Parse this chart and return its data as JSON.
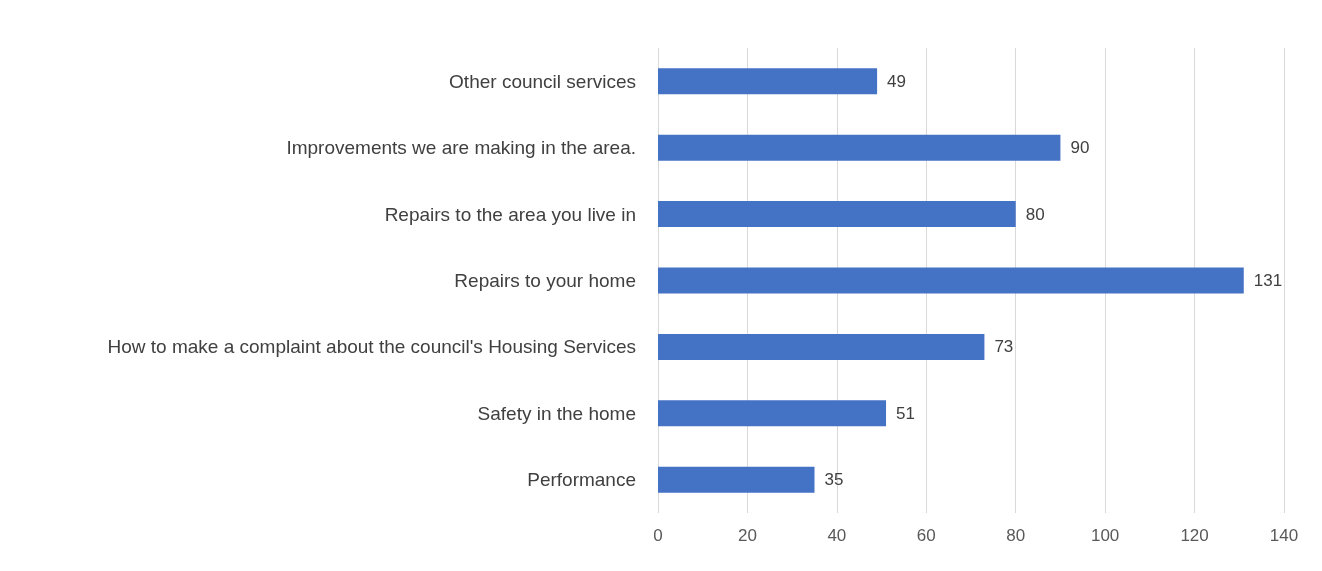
{
  "chart_data": {
    "type": "bar",
    "orientation": "horizontal",
    "categories": [
      "Other council services",
      "Improvements we are making in the area.",
      "Repairs to the area you live in",
      "Repairs to your home",
      "How to make a complaint about the council's Housing Services",
      "Safety in the home",
      "Performance"
    ],
    "values": [
      49,
      90,
      80,
      131,
      73,
      51,
      35
    ],
    "color": "#4472c4",
    "xlim": [
      0,
      140
    ],
    "xticks": [
      0,
      20,
      40,
      60,
      80,
      100,
      120,
      140
    ],
    "grid": "x",
    "data_labels": true
  }
}
